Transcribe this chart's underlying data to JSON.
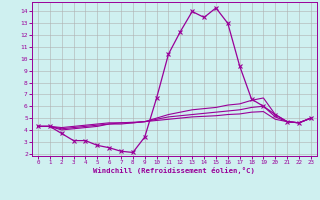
{
  "xlabel": "Windchill (Refroidissement éolien,°C)",
  "background_color": "#cff0f0",
  "grid_color": "#b0b0b0",
  "line_color": "#990099",
  "xlim": [
    -0.5,
    23.5
  ],
  "ylim": [
    1.8,
    14.8
  ],
  "xticks": [
    0,
    1,
    2,
    3,
    4,
    5,
    6,
    7,
    8,
    9,
    10,
    11,
    12,
    13,
    14,
    15,
    16,
    17,
    18,
    19,
    20,
    21,
    22,
    23
  ],
  "yticks": [
    2,
    3,
    4,
    5,
    6,
    7,
    8,
    9,
    10,
    11,
    12,
    13,
    14
  ],
  "series_main": [
    4.3,
    4.3,
    3.7,
    3.1,
    3.1,
    2.7,
    2.5,
    2.2,
    2.1,
    3.4,
    6.7,
    10.4,
    12.3,
    14.0,
    13.5,
    14.3,
    13.0,
    9.4,
    6.6,
    6.0,
    5.3,
    4.7,
    4.6,
    5.0
  ],
  "series_flat1": [
    4.3,
    4.3,
    4.0,
    4.1,
    4.2,
    4.3,
    4.5,
    4.6,
    4.6,
    4.7,
    5.0,
    5.3,
    5.5,
    5.7,
    5.8,
    5.9,
    6.1,
    6.2,
    6.5,
    6.7,
    5.3,
    4.7,
    4.6,
    5.0
  ],
  "series_flat2": [
    4.3,
    4.3,
    4.1,
    4.2,
    4.3,
    4.4,
    4.5,
    4.5,
    4.6,
    4.7,
    4.9,
    5.1,
    5.2,
    5.3,
    5.4,
    5.5,
    5.6,
    5.7,
    5.9,
    6.0,
    5.1,
    4.7,
    4.6,
    5.0
  ],
  "series_flat3": [
    4.3,
    4.3,
    4.2,
    4.3,
    4.4,
    4.5,
    4.6,
    4.6,
    4.65,
    4.7,
    4.8,
    4.9,
    5.0,
    5.1,
    5.15,
    5.2,
    5.3,
    5.35,
    5.5,
    5.55,
    4.9,
    4.7,
    4.6,
    5.0
  ]
}
